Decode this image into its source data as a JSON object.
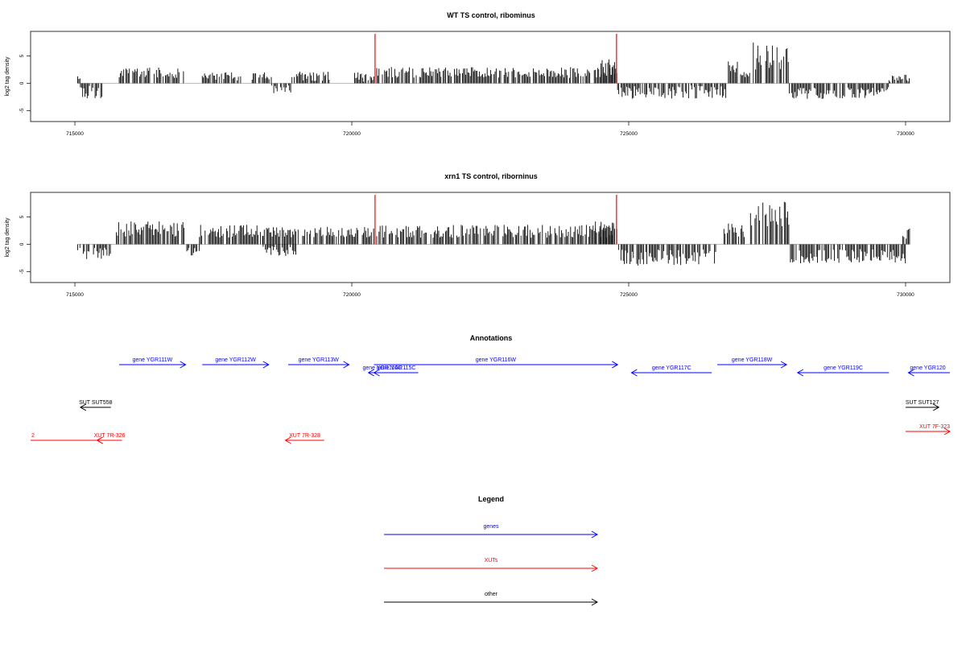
{
  "panels": [
    {
      "title": "WT TS control, ribominus",
      "ylabel": "log2 tag density",
      "xlim": [
        714200,
        730800
      ],
      "ylim": [
        -7,
        9.5
      ],
      "xticks": [
        715000,
        720000,
        725000,
        730000
      ],
      "yticks": [
        -5,
        0,
        5
      ],
      "vlines": [
        720420,
        724780
      ],
      "vline_color": "#ff0000",
      "segments": [
        {
          "x0": 715050,
          "x1": 715100,
          "mean": 1.0,
          "amp": 0.6
        },
        {
          "x0": 715100,
          "x1": 715500,
          "mean": -1.6,
          "amp": 1.2
        },
        {
          "x0": 715800,
          "x1": 717000,
          "mean": 2.0,
          "amp": 1.0
        },
        {
          "x0": 717300,
          "x1": 718000,
          "mean": 1.2,
          "amp": 0.8
        },
        {
          "x0": 718200,
          "x1": 718550,
          "mean": 1.6,
          "amp": 1.0
        },
        {
          "x0": 718550,
          "x1": 718900,
          "mean": -1.0,
          "amp": 0.8
        },
        {
          "x0": 718900,
          "x1": 719600,
          "mean": 1.3,
          "amp": 0.9
        },
        {
          "x0": 720050,
          "x1": 720400,
          "mean": 1.0,
          "amp": 1.0
        },
        {
          "x0": 720450,
          "x1": 724800,
          "mean": 2.0,
          "amp": 1.0
        },
        {
          "x0": 724500,
          "x1": 724780,
          "mean": 3.0,
          "amp": 1.5
        },
        {
          "x0": 724800,
          "x1": 726800,
          "mean": -1.6,
          "amp": 1.2
        },
        {
          "x0": 726800,
          "x1": 727000,
          "mean": 3.0,
          "amp": 1.0
        },
        {
          "x0": 727000,
          "x1": 727200,
          "mean": 1.5,
          "amp": 0.7
        },
        {
          "x0": 727250,
          "x1": 727900,
          "mean": 5.0,
          "amp": 2.5
        },
        {
          "x0": 727900,
          "x1": 729700,
          "mean": -1.8,
          "amp": 1.1
        },
        {
          "x0": 729700,
          "x1": 730080,
          "mean": 0.8,
          "amp": 0.8
        }
      ]
    },
    {
      "title": "xrn1 TS control, riborninus",
      "ylabel": "log2 tag density",
      "xlim": [
        714200,
        730800
      ],
      "ylim": [
        -7,
        9.5
      ],
      "xticks": [
        715000,
        720000,
        725000,
        730000
      ],
      "yticks": [
        -5,
        0,
        5
      ],
      "vlines": [
        720420,
        724780
      ],
      "vline_color": "#ff0000",
      "segments": [
        {
          "x0": 715050,
          "x1": 715650,
          "mean": -1.8,
          "amp": 1.2
        },
        {
          "x0": 715750,
          "x1": 717000,
          "mean": 2.8,
          "amp": 1.4
        },
        {
          "x0": 717000,
          "x1": 717250,
          "mean": -1.3,
          "amp": 0.8
        },
        {
          "x0": 717250,
          "x1": 718400,
          "mean": 2.4,
          "amp": 1.2
        },
        {
          "x0": 718400,
          "x1": 719000,
          "mean": -1.2,
          "amp": 1.0
        },
        {
          "x0": 718400,
          "x1": 720400,
          "mean": 2.2,
          "amp": 1.0
        },
        {
          "x0": 720450,
          "x1": 724800,
          "mean": 2.4,
          "amp": 1.2
        },
        {
          "x0": 724400,
          "x1": 724780,
          "mean": 3.4,
          "amp": 1.6
        },
        {
          "x0": 724800,
          "x1": 726600,
          "mean": -2.4,
          "amp": 1.5
        },
        {
          "x0": 726700,
          "x1": 727100,
          "mean": 2.6,
          "amp": 1.3
        },
        {
          "x0": 727200,
          "x1": 727900,
          "mean": 5.2,
          "amp": 2.6
        },
        {
          "x0": 727900,
          "x1": 730000,
          "mean": -2.2,
          "amp": 1.3
        },
        {
          "x0": 729950,
          "x1": 730080,
          "mean": 2.0,
          "amp": 1.0
        }
      ]
    }
  ],
  "annotations": {
    "title": "Annotations",
    "features": [
      {
        "label": "gene YGR111W",
        "x0": 716600,
        "x1": 716200,
        "type": "gene",
        "dir": "right",
        "row": 0,
        "start": 715800,
        "end": 717000
      },
      {
        "label": "gene YGR112W",
        "type": "gene",
        "dir": "right",
        "row": 0,
        "start": 717300,
        "end": 718500
      },
      {
        "label": "gene YGR113W",
        "type": "gene",
        "dir": "right",
        "row": 0,
        "start": 718850,
        "end": 719950
      },
      {
        "label": "gene YGR114C",
        "type": "gene",
        "dir": "left",
        "row": 1,
        "start": 720300,
        "end": 720800
      },
      {
        "label": "gene YGR115C",
        "type": "gene",
        "dir": "left",
        "row": 1,
        "start": 720400,
        "end": 721200
      },
      {
        "label": "gene YGR116W",
        "type": "gene",
        "dir": "right",
        "row": 0,
        "start": 720400,
        "end": 724800
      },
      {
        "label": "gene YGR117C",
        "type": "gene",
        "dir": "left",
        "row": 1,
        "start": 725050,
        "end": 726500
      },
      {
        "label": "gene YGR118W",
        "type": "gene",
        "dir": "right",
        "row": 0,
        "start": 726600,
        "end": 727850
      },
      {
        "label": "gene YGR119C",
        "type": "gene",
        "dir": "left",
        "row": 1,
        "start": 728050,
        "end": 729700
      },
      {
        "label": "gene YGR120",
        "type": "gene",
        "dir": "left",
        "row": 1,
        "start": 730050,
        "end": 730800
      },
      {
        "label": "SUT SUT558",
        "type": "other",
        "dir": "left",
        "row": 2,
        "start": 715100,
        "end": 715650
      },
      {
        "label": "SUT SUT127",
        "type": "other",
        "dir": "right",
        "row": 2,
        "start": 730000,
        "end": 730600
      },
      {
        "label": "XUT 7R-326",
        "type": "xut",
        "dir": "left",
        "row": 3,
        "start": 715400,
        "end": 715850
      },
      {
        "label": "2",
        "type": "xut",
        "dir": "left",
        "row": 3,
        "start": 714200,
        "end": 715400
      },
      {
        "label": "XUT 7R-328",
        "type": "xut",
        "dir": "left",
        "row": 3,
        "start": 718800,
        "end": 719500
      },
      {
        "label": "XUT 7F-323",
        "type": "xut",
        "dir": "right",
        "row": 4,
        "start": 730000,
        "end": 730800
      }
    ]
  },
  "legend": {
    "title": "Legend",
    "items": [
      {
        "label": "genes",
        "color": "#0000ff"
      },
      {
        "label": "XUTs",
        "color": "#ff0000"
      },
      {
        "label": "other",
        "color": "#000000"
      }
    ]
  },
  "colors": {
    "gene": "#0000ff",
    "xut": "#ff0000",
    "other": "#000000"
  }
}
